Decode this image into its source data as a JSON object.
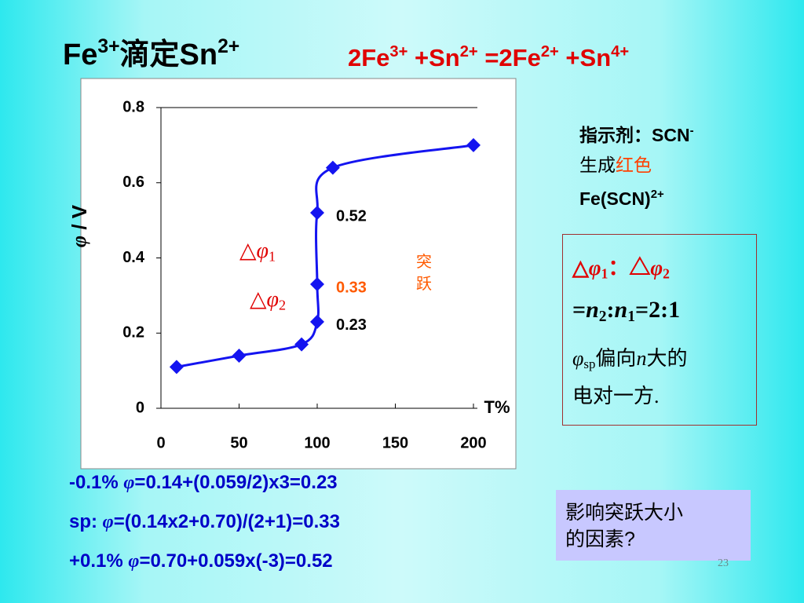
{
  "title": [
    {
      "text": "Fe"
    },
    {
      "sup": "3+"
    },
    {
      "text": "滴定Sn"
    },
    {
      "sup": "2+"
    }
  ],
  "equation": [
    {
      "text": "2Fe"
    },
    {
      "sup": "3+"
    },
    {
      "text": " +Sn"
    },
    {
      "sup": "2+"
    },
    {
      "text": " =2Fe"
    },
    {
      "sup": "2+"
    },
    {
      "text": " +Sn"
    },
    {
      "sup": "4+"
    }
  ],
  "indicator": [
    [
      {
        "text": "指示剂：SCN"
      },
      {
        "sup": "-"
      }
    ],
    [
      {
        "text": "生成"
      },
      {
        "red": "红色"
      }
    ],
    [
      {
        "text": "Fe(SCN)"
      },
      {
        "sup": "2+"
      }
    ]
  ],
  "ratio_box": [
    [
      {
        "text": "△"
      },
      {
        "italic": "φ"
      },
      {
        "sub": "1"
      },
      {
        "text": "：△"
      },
      {
        "italic": "φ"
      },
      {
        "sub": "2"
      }
    ],
    [
      {
        "text": "="
      },
      {
        "italic": "n"
      },
      {
        "sub": "2"
      },
      {
        "text": ":"
      },
      {
        "italic": "n"
      },
      {
        "sub": "1"
      },
      {
        "text": "=2:1"
      }
    ],
    [
      {
        "italic": "φ"
      },
      {
        "sub": "sp"
      },
      {
        "text": "偏向"
      },
      {
        "italic": "n"
      },
      {
        "text": "大的"
      }
    ],
    [
      {
        "text": "电对一方."
      }
    ]
  ],
  "formulas": [
    [
      {
        "text": "-0.1% "
      },
      {
        "italic": "φ"
      },
      {
        "text": "=0.14+(0.059/2)x3=0.23"
      }
    ],
    [
      {
        "text": "sp: "
      },
      {
        "italic": "φ"
      },
      {
        "text": "=(0.14x2+0.70)/(2+1)=0.33"
      }
    ],
    [
      {
        "text": "+0.1% "
      },
      {
        "italic": "φ"
      },
      {
        "text": "=0.70+0.059x(-3)=0.52"
      }
    ]
  ],
  "question": [
    "影响突跃大小",
    "的因素?"
  ],
  "page_number": "23",
  "chart_data": {
    "type": "line",
    "x": [
      10,
      50,
      90,
      100,
      100,
      100,
      110,
      200
    ],
    "series": [
      {
        "color": "#1414f0",
        "values": [
          0.11,
          0.14,
          0.17,
          0.23,
          0.33,
          0.52,
          0.64,
          0.7
        ],
        "value_label_colors": [
          null,
          null,
          null,
          "#000000",
          "#ff5a00",
          "#000000",
          null,
          null
        ]
      }
    ],
    "xlim": [
      0,
      200
    ],
    "xticks": [
      0,
      50,
      100,
      150,
      200
    ],
    "ylim": [
      0,
      0.8
    ],
    "yticks": [
      0,
      0.2,
      0.4,
      0.6,
      0.8
    ],
    "y_label": [
      {
        "italic": "φ"
      },
      {
        "text": " / V"
      }
    ],
    "x_label": "T%",
    "annotations": [
      [
        {
          "text": "△"
        },
        {
          "italic": "φ"
        },
        {
          "sub": "1"
        }
      ],
      [
        {
          "text": "△"
        },
        {
          "italic": "φ"
        },
        {
          "sub": "2"
        }
      ]
    ],
    "jump_label": "突跃"
  }
}
